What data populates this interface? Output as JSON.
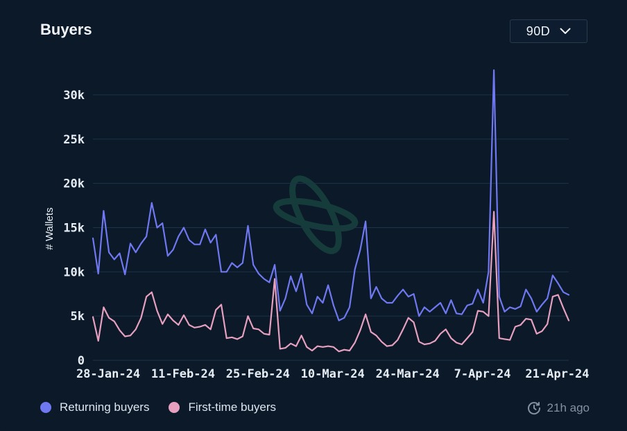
{
  "header": {
    "title": "Buyers",
    "range_label": "90D"
  },
  "footer": {
    "updated": "21h ago"
  },
  "colors": {
    "returning": "#6f78f0",
    "first_time": "#e8a0c0",
    "grid": "#1d3347",
    "axis_text": "#e6edf5",
    "watermark": "#1e5a4a"
  },
  "icons": {
    "dropdown": "chevron-down-icon",
    "updated": "clock-refresh-icon",
    "watermark": "orbit-logo-icon"
  },
  "chart_data": {
    "type": "line",
    "title": "Buyers",
    "xlabel": "",
    "ylabel": "# Wallets",
    "ylim": [
      0,
      32500
    ],
    "y_ticks": [
      0,
      5000,
      10000,
      15000,
      20000,
      25000,
      30000
    ],
    "y_tick_labels": [
      "0",
      "5k",
      "10k",
      "15k",
      "20k",
      "25k",
      "30k"
    ],
    "x_tick_labels": [
      "28-Jan-24",
      "11-Feb-24",
      "25-Feb-24",
      "10-Mar-24",
      "24-Mar-24",
      "7-Apr-24",
      "21-Apr-24"
    ],
    "x_tick_index": [
      0,
      14,
      28,
      42,
      56,
      70,
      84
    ],
    "grid": true,
    "legend_position": "bottom-left",
    "series": [
      {
        "name": "Returning buyers",
        "color": "#6f78f0",
        "values": [
          13800,
          9800,
          16900,
          12200,
          11400,
          12100,
          9700,
          13200,
          12200,
          13200,
          14000,
          17800,
          15000,
          15500,
          11800,
          12500,
          14000,
          15000,
          13600,
          13100,
          13100,
          14800,
          13300,
          14200,
          10000,
          10000,
          11000,
          10500,
          11000,
          15200,
          10800,
          9800,
          9200,
          8800,
          10800,
          5600,
          7000,
          9500,
          7800,
          9800,
          6300,
          5300,
          7200,
          6500,
          8500,
          6200,
          4500,
          4800,
          6000,
          10300,
          12500,
          15700,
          7000,
          8300,
          7000,
          6500,
          6500,
          7300,
          8000,
          7200,
          7500,
          5000,
          6000,
          5500,
          6000,
          6500,
          5300,
          6800,
          5300,
          5200,
          6200,
          6400,
          8000,
          6500,
          10000,
          32800,
          7200,
          5500,
          6000,
          5800,
          6100,
          8000,
          7000,
          5500,
          6300,
          7000,
          9600,
          8700,
          7700,
          7400
        ]
      },
      {
        "name": "First-time buyers",
        "color": "#e8a0c0",
        "values": [
          4900,
          2200,
          6000,
          4800,
          4400,
          3400,
          2700,
          2800,
          3500,
          4800,
          7200,
          7700,
          5600,
          4100,
          5200,
          4500,
          4000,
          5100,
          4000,
          3700,
          3800,
          4000,
          3500,
          5700,
          6300,
          2500,
          2600,
          2400,
          2700,
          5000,
          3600,
          3500,
          3000,
          2900,
          9200,
          1300,
          1400,
          1900,
          1600,
          2800,
          1500,
          1100,
          1600,
          1500,
          1600,
          1500,
          1000,
          1200,
          1100,
          2000,
          3400,
          5200,
          3200,
          2800,
          2100,
          1600,
          1700,
          2300,
          3500,
          4800,
          4300,
          2100,
          1800,
          1900,
          2200,
          3000,
          3500,
          2500,
          2000,
          1800,
          2500,
          3200,
          5600,
          5500,
          5000,
          16800,
          2500,
          2400,
          2300,
          3800,
          4000,
          4700,
          4600,
          3000,
          3300,
          4100,
          7200,
          7400,
          5900,
          4500
        ]
      }
    ]
  }
}
